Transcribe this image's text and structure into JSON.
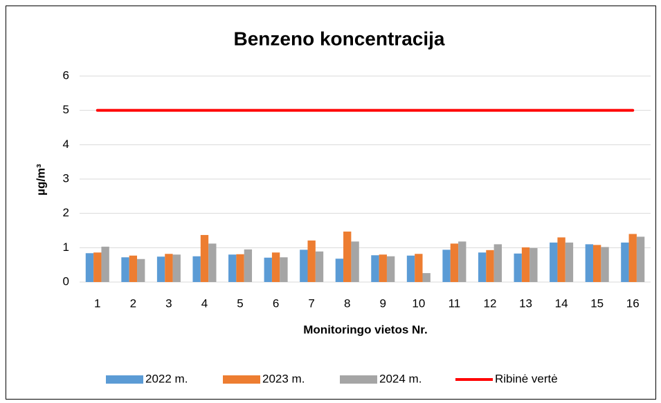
{
  "chart_data": {
    "type": "bar",
    "title": "Benzeno koncentracija",
    "x_label": "Monitoringo vietos Nr.",
    "y_label": "µg/m³",
    "categories": [
      "1",
      "2",
      "3",
      "4",
      "5",
      "6",
      "7",
      "8",
      "9",
      "10",
      "11",
      "12",
      "13",
      "14",
      "15",
      "16"
    ],
    "series": [
      {
        "name": "2022 m.",
        "color": "#5b9bd5",
        "values": [
          0.84,
          0.72,
          0.74,
          0.75,
          0.8,
          0.71,
          0.94,
          0.68,
          0.78,
          0.77,
          0.94,
          0.86,
          0.83,
          1.15,
          1.1,
          1.15
        ]
      },
      {
        "name": "2023 m.",
        "color": "#ed7d31",
        "values": [
          0.86,
          0.77,
          0.82,
          1.37,
          0.81,
          0.86,
          1.21,
          1.47,
          0.8,
          0.82,
          1.12,
          0.93,
          1.01,
          1.3,
          1.08,
          1.4
        ]
      },
      {
        "name": "2024 m.",
        "color": "#a5a5a5",
        "values": [
          1.03,
          0.67,
          0.8,
          1.12,
          0.95,
          0.72,
          0.89,
          1.18,
          0.75,
          0.26,
          1.18,
          1.1,
          0.99,
          1.15,
          1.02,
          1.32
        ]
      },
      {
        "name": "Ribinė vertė",
        "color": "#ff0000",
        "type": "line",
        "values": [
          5,
          5,
          5,
          5,
          5,
          5,
          5,
          5,
          5,
          5,
          5,
          5,
          5,
          5,
          5,
          5
        ]
      }
    ],
    "ylim": [
      0,
      6
    ],
    "yticks": [
      0,
      1,
      2,
      3,
      4,
      5,
      6
    ],
    "grid": true,
    "legend": "bottom"
  }
}
